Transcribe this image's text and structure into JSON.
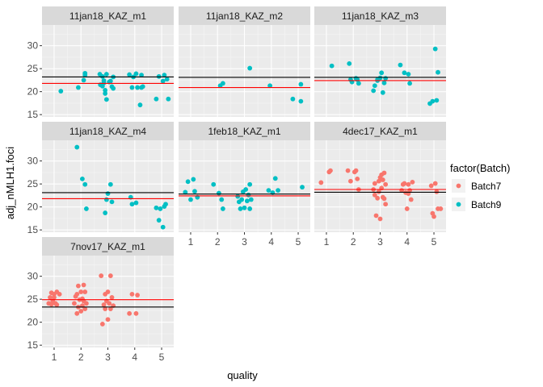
{
  "chart_data": {
    "type": "scatter",
    "facet_by": "chart",
    "xlabel": "quality",
    "ylabel": "adj_nMLH1.foci",
    "x_ticks": [
      1,
      2,
      3,
      4,
      5
    ],
    "y_ticks": [
      15,
      20,
      25,
      30
    ],
    "xlim": [
      0.55,
      5.45
    ],
    "ylim": [
      14.5,
      34.5
    ],
    "grid": true,
    "legend": {
      "title": "factor(Batch)",
      "position": "right",
      "entries": [
        {
          "name": "Batch7",
          "color": "#F8766D"
        },
        {
          "name": "Batch9",
          "color": "#00BFC4"
        }
      ]
    },
    "reference_lines": {
      "black_color": "#000000",
      "red_color": "#FF0000"
    },
    "panels": [
      {
        "title": "11jan18_KAZ_m1",
        "batch": "Batch9",
        "hline_black": 23.2,
        "hline_red": 21.8,
        "points": [
          [
            1.25,
            20.1
          ],
          [
            1.9,
            20.9
          ],
          [
            2.1,
            22.5
          ],
          [
            2.15,
            23.6
          ],
          [
            2.15,
            24.0
          ],
          [
            2.7,
            23.8
          ],
          [
            2.72,
            21.5
          ],
          [
            2.8,
            21.2
          ],
          [
            2.8,
            23.3
          ],
          [
            2.85,
            22.4
          ],
          [
            2.85,
            21.9
          ],
          [
            2.9,
            20.3
          ],
          [
            2.9,
            19.6
          ],
          [
            2.95,
            18.3
          ],
          [
            2.95,
            23.8
          ],
          [
            3.05,
            22.1
          ],
          [
            3.1,
            22.3
          ],
          [
            3.15,
            21.1
          ],
          [
            3.2,
            20.7
          ],
          [
            3.2,
            23.2
          ],
          [
            3.8,
            23.7
          ],
          [
            3.9,
            20.9
          ],
          [
            3.95,
            23.2
          ],
          [
            4.05,
            23.9
          ],
          [
            4.1,
            20.9
          ],
          [
            4.2,
            17.1
          ],
          [
            4.25,
            20.9
          ],
          [
            4.25,
            23.6
          ],
          [
            4.3,
            21.1
          ],
          [
            4.8,
            18.4
          ],
          [
            4.9,
            23.3
          ],
          [
            5.05,
            22.3
          ],
          [
            5.1,
            23.6
          ],
          [
            5.25,
            18.4
          ],
          [
            5.2,
            22.7
          ]
        ]
      },
      {
        "title": "11jan18_KAZ_m2",
        "batch": "Batch9",
        "hline_black": 23.1,
        "hline_red": 20.9,
        "points": [
          [
            2.1,
            21.3
          ],
          [
            2.2,
            21.8
          ],
          [
            3.2,
            25.1
          ],
          [
            3.95,
            21.3
          ],
          [
            4.8,
            18.4
          ],
          [
            5.1,
            21.6
          ],
          [
            5.1,
            17.9
          ]
        ]
      },
      {
        "title": "11jan18_KAZ_m3",
        "batch": "Batch9",
        "hline_black": 23.1,
        "hline_red": 22.4,
        "points": [
          [
            1.2,
            25.6
          ],
          [
            1.85,
            26.1
          ],
          [
            1.9,
            22.6
          ],
          [
            1.95,
            22.1
          ],
          [
            2.1,
            22.9
          ],
          [
            2.15,
            22.6
          ],
          [
            2.2,
            21.8
          ],
          [
            2.75,
            20.2
          ],
          [
            2.8,
            21.3
          ],
          [
            2.9,
            22.4
          ],
          [
            2.9,
            22.6
          ],
          [
            3.0,
            23.0
          ],
          [
            3.05,
            24.1
          ],
          [
            3.1,
            19.8
          ],
          [
            3.15,
            21.9
          ],
          [
            3.2,
            22.9
          ],
          [
            3.75,
            25.8
          ],
          [
            3.9,
            24.1
          ],
          [
            4.05,
            23.8
          ],
          [
            4.1,
            21.8
          ],
          [
            4.85,
            17.4
          ],
          [
            4.95,
            17.9
          ],
          [
            5.05,
            29.3
          ],
          [
            5.1,
            18.1
          ],
          [
            5.15,
            24.2
          ]
        ]
      },
      {
        "title": "11jan18_KAZ_m4",
        "batch": "Batch9",
        "hline_black": 23.1,
        "hline_red": 21.8,
        "points": [
          [
            1.85,
            33.0
          ],
          [
            2.05,
            26.1
          ],
          [
            2.15,
            24.9
          ],
          [
            2.2,
            19.6
          ],
          [
            2.9,
            18.7
          ],
          [
            2.95,
            21.6
          ],
          [
            3.0,
            22.9
          ],
          [
            3.1,
            24.9
          ],
          [
            3.15,
            21.1
          ],
          [
            3.85,
            22.1
          ],
          [
            3.9,
            20.6
          ],
          [
            4.05,
            20.9
          ],
          [
            4.8,
            19.8
          ],
          [
            4.9,
            17.1
          ],
          [
            4.95,
            19.6
          ],
          [
            5.05,
            15.6
          ],
          [
            5.1,
            20.1
          ],
          [
            5.15,
            20.6
          ]
        ]
      },
      {
        "title": "1feb18_KAZ_m1",
        "batch": "Batch9",
        "hline_black": 22.8,
        "hline_red": 22.4,
        "points": [
          [
            0.8,
            23.2
          ],
          [
            0.9,
            25.5
          ],
          [
            1.0,
            21.6
          ],
          [
            1.1,
            26.0
          ],
          [
            1.15,
            23.4
          ],
          [
            1.25,
            22.1
          ],
          [
            1.85,
            24.9
          ],
          [
            2.05,
            23.0
          ],
          [
            2.15,
            21.6
          ],
          [
            2.2,
            19.6
          ],
          [
            2.75,
            22.3
          ],
          [
            2.8,
            21.1
          ],
          [
            2.85,
            19.6
          ],
          [
            2.9,
            21.6
          ],
          [
            2.95,
            23.3
          ],
          [
            3.0,
            19.8
          ],
          [
            3.05,
            23.8
          ],
          [
            3.1,
            21.3
          ],
          [
            3.15,
            22.6
          ],
          [
            3.2,
            19.6
          ],
          [
            3.2,
            24.9
          ],
          [
            3.25,
            21.6
          ],
          [
            3.9,
            23.6
          ],
          [
            4.05,
            23.1
          ],
          [
            4.15,
            26.2
          ],
          [
            4.25,
            23.6
          ],
          [
            5.15,
            24.3
          ]
        ]
      },
      {
        "title": "4dec17_KAZ_m1",
        "batch": "Batch7",
        "hline_black": 23.2,
        "hline_red": 23.8,
        "points": [
          [
            0.8,
            25.3
          ],
          [
            1.1,
            27.6
          ],
          [
            1.15,
            27.9
          ],
          [
            1.8,
            27.9
          ],
          [
            1.9,
            25.6
          ],
          [
            2.05,
            27.6
          ],
          [
            2.1,
            27.9
          ],
          [
            2.15,
            26.1
          ],
          [
            2.2,
            23.8
          ],
          [
            2.75,
            23.8
          ],
          [
            2.8,
            22.6
          ],
          [
            2.8,
            25.1
          ],
          [
            2.85,
            18.1
          ],
          [
            2.9,
            21.9
          ],
          [
            2.95,
            25.6
          ],
          [
            2.95,
            23.3
          ],
          [
            3.0,
            17.4
          ],
          [
            3.0,
            26.4
          ],
          [
            3.05,
            24.1
          ],
          [
            3.05,
            27.0
          ],
          [
            3.1,
            22.1
          ],
          [
            3.1,
            25.9
          ],
          [
            3.15,
            21.8
          ],
          [
            3.15,
            27.4
          ],
          [
            3.2,
            24.9
          ],
          [
            3.2,
            20.6
          ],
          [
            3.8,
            23.6
          ],
          [
            3.85,
            24.9
          ],
          [
            3.9,
            25.1
          ],
          [
            3.95,
            23.1
          ],
          [
            4.0,
            19.6
          ],
          [
            4.05,
            22.9
          ],
          [
            4.05,
            24.9
          ],
          [
            4.1,
            23.6
          ],
          [
            4.15,
            21.6
          ],
          [
            4.2,
            25.4
          ],
          [
            4.9,
            24.6
          ],
          [
            4.95,
            18.6
          ],
          [
            5.0,
            17.9
          ],
          [
            5.05,
            25.1
          ],
          [
            5.1,
            23.3
          ],
          [
            5.15,
            19.6
          ],
          [
            5.25,
            19.6
          ]
        ]
      },
      {
        "title": "7nov17_KAZ_m1",
        "batch": "Batch7",
        "hline_black": 23.3,
        "hline_red": 24.9,
        "points": [
          [
            0.8,
            24.1
          ],
          [
            0.85,
            25.4
          ],
          [
            0.9,
            26.4
          ],
          [
            0.9,
            23.9
          ],
          [
            0.95,
            24.6
          ],
          [
            1.0,
            26.1
          ],
          [
            1.0,
            25.4
          ],
          [
            1.05,
            24.1
          ],
          [
            1.1,
            23.8
          ],
          [
            1.1,
            26.6
          ],
          [
            1.2,
            26.1
          ],
          [
            1.75,
            24.1
          ],
          [
            1.8,
            25.6
          ],
          [
            1.85,
            21.9
          ],
          [
            1.85,
            26.1
          ],
          [
            1.9,
            27.9
          ],
          [
            1.9,
            23.3
          ],
          [
            1.95,
            24.9
          ],
          [
            2.0,
            26.6
          ],
          [
            2.0,
            22.4
          ],
          [
            2.05,
            25.1
          ],
          [
            2.05,
            23.6
          ],
          [
            2.1,
            28.1
          ],
          [
            2.1,
            24.6
          ],
          [
            2.15,
            26.6
          ],
          [
            2.15,
            22.9
          ],
          [
            2.2,
            24.1
          ],
          [
            2.75,
            30.1
          ],
          [
            2.8,
            19.6
          ],
          [
            2.85,
            23.8
          ],
          [
            2.9,
            26.1
          ],
          [
            2.9,
            22.9
          ],
          [
            2.95,
            24.6
          ],
          [
            3.0,
            20.6
          ],
          [
            3.0,
            26.6
          ],
          [
            3.05,
            24.1
          ],
          [
            3.1,
            30.1
          ],
          [
            3.1,
            22.9
          ],
          [
            3.15,
            25.4
          ],
          [
            3.2,
            23.6
          ],
          [
            3.8,
            21.9
          ],
          [
            3.9,
            26.1
          ],
          [
            4.05,
            21.9
          ],
          [
            4.1,
            25.9
          ]
        ]
      }
    ]
  }
}
